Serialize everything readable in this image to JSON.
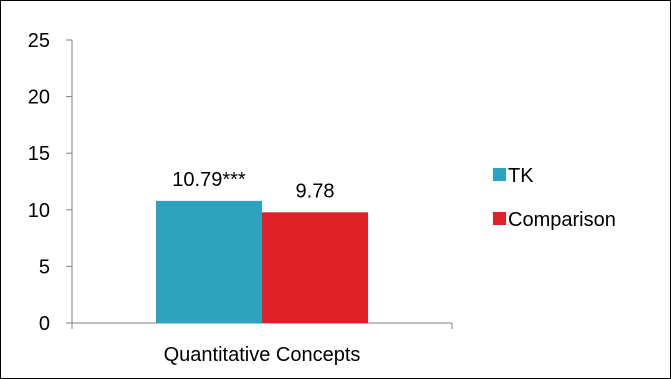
{
  "chart_data": {
    "type": "bar",
    "categories": [
      "Quantitative Concepts"
    ],
    "series": [
      {
        "name": "TK",
        "values": [
          10.79
        ],
        "label": "10.79***",
        "color": "#2ea3bf"
      },
      {
        "name": "Comparison",
        "values": [
          9.78
        ],
        "label": "9.78",
        "color": "#df2228"
      }
    ],
    "title": "",
    "xlabel": "",
    "ylabel": "",
    "ylim": [
      0,
      25
    ],
    "yticks": [
      0,
      5,
      10,
      15,
      20,
      25
    ],
    "grid": false,
    "legend": "right"
  }
}
